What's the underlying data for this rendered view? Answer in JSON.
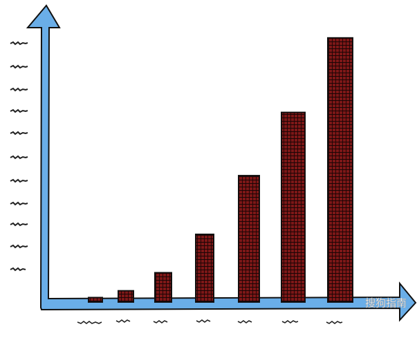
{
  "chart_data": {
    "type": "bar",
    "categories": [
      null,
      null,
      null,
      null,
      null,
      null,
      null
    ],
    "values": [
      0.2,
      0.5,
      1.3,
      3.0,
      5.6,
      8.4,
      11.7
    ],
    "color": "#7d1717",
    "ylim": [
      0,
      12
    ],
    "watermark": "搜狗指南"
  }
}
